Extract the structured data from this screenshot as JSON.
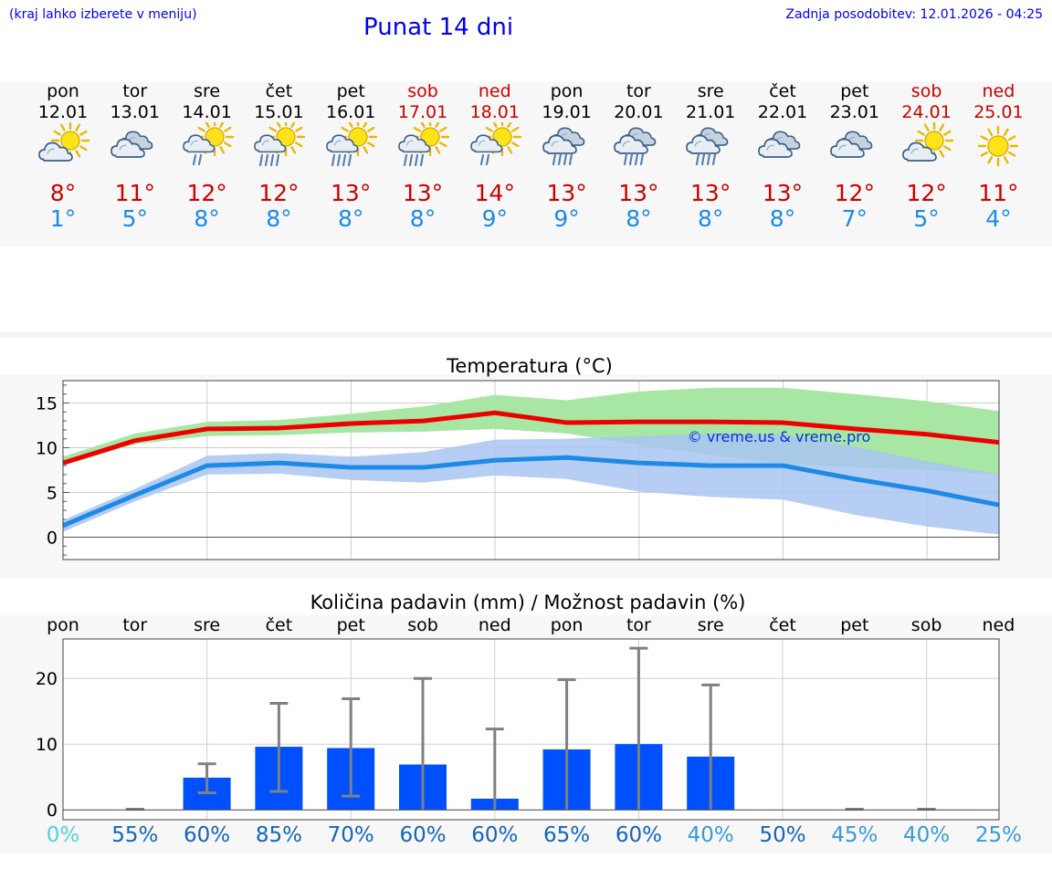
{
  "header": {
    "left_note": "(kraj lahko izberete v meniju)",
    "title": "Punat 14 dni",
    "updated": "Zadnja posodobitev: 12.01.2026 - 04:25"
  },
  "days": [
    {
      "name": "pon",
      "date": "12.01",
      "weekend": false,
      "icon": "sun-cloud",
      "tmax": "8°",
      "tmin": "1°",
      "pct": "0%",
      "pct_color": "#4fd1e0"
    },
    {
      "name": "tor",
      "date": "13.01",
      "weekend": false,
      "icon": "clouds",
      "tmax": "11°",
      "tmin": "5°",
      "pct": "55%",
      "pct_color": "#1565b8"
    },
    {
      "name": "sre",
      "date": "14.01",
      "weekend": false,
      "icon": "sun-rain",
      "tmax": "12°",
      "tmin": "8°",
      "pct": "60%",
      "pct_color": "#1565b8"
    },
    {
      "name": "čet",
      "date": "15.01",
      "weekend": false,
      "icon": "sun-heavy-rain",
      "tmax": "12°",
      "tmin": "8°",
      "pct": "85%",
      "pct_color": "#1565b8"
    },
    {
      "name": "pet",
      "date": "16.01",
      "weekend": false,
      "icon": "sun-heavy-rain",
      "tmax": "13°",
      "tmin": "8°",
      "pct": "70%",
      "pct_color": "#1565b8"
    },
    {
      "name": "sob",
      "date": "17.01",
      "weekend": true,
      "icon": "sun-heavy-rain",
      "tmax": "13°",
      "tmin": "8°",
      "pct": "60%",
      "pct_color": "#1565b8"
    },
    {
      "name": "ned",
      "date": "18.01",
      "weekend": true,
      "icon": "sun-rain",
      "tmax": "14°",
      "tmin": "9°",
      "pct": "60%",
      "pct_color": "#1565b8"
    },
    {
      "name": "pon",
      "date": "19.01",
      "weekend": false,
      "icon": "clouds-rain",
      "tmax": "13°",
      "tmin": "9°",
      "pct": "65%",
      "pct_color": "#1565b8"
    },
    {
      "name": "tor",
      "date": "20.01",
      "weekend": false,
      "icon": "clouds-rain",
      "tmax": "13°",
      "tmin": "8°",
      "pct": "60%",
      "pct_color": "#1565b8"
    },
    {
      "name": "sre",
      "date": "21.01",
      "weekend": false,
      "icon": "clouds-rain",
      "tmax": "13°",
      "tmin": "8°",
      "pct": "40%",
      "pct_color": "#3a9ad6"
    },
    {
      "name": "čet",
      "date": "22.01",
      "weekend": false,
      "icon": "clouds",
      "tmax": "13°",
      "tmin": "8°",
      "pct": "50%",
      "pct_color": "#1565b8"
    },
    {
      "name": "pet",
      "date": "23.01",
      "weekend": false,
      "icon": "clouds",
      "tmax": "12°",
      "tmin": "7°",
      "pct": "45%",
      "pct_color": "#3a9ad6"
    },
    {
      "name": "sob",
      "date": "24.01",
      "weekend": true,
      "icon": "sun-cloud",
      "tmax": "12°",
      "tmin": "5°",
      "pct": "40%",
      "pct_color": "#3a9ad6"
    },
    {
      "name": "ned",
      "date": "25.01",
      "weekend": true,
      "icon": "sun",
      "tmax": "11°",
      "tmin": "4°",
      "pct": "25%",
      "pct_color": "#3a9ad6"
    }
  ],
  "colors": {
    "max": "#ee0000",
    "min": "#1e8ae6",
    "band_max": "#a8e6a3",
    "band_min": "#a9c4f2",
    "bar": "#0050ff",
    "whisker": "#808080"
  },
  "chart_data": [
    {
      "type": "line",
      "title": "Temperatura (°C)",
      "watermark": "© vreme.us & vreme.pro",
      "ylim": [
        -2.5,
        17.5
      ],
      "yticks": [
        0,
        5,
        10,
        15
      ],
      "x": [
        0,
        1,
        2,
        3,
        4,
        5,
        6,
        7,
        8,
        9,
        10,
        11,
        12,
        13
      ],
      "series": [
        {
          "name": "max",
          "values": [
            8.3,
            10.8,
            12.1,
            12.2,
            12.7,
            13.0,
            13.9,
            12.8,
            12.9,
            12.9,
            12.8,
            12.1,
            11.5,
            10.6
          ],
          "band_low": [
            8.0,
            10.4,
            11.3,
            11.4,
            11.7,
            11.8,
            12.1,
            11.6,
            10.3,
            9.2,
            8.2,
            7.8,
            7.5,
            7.0
          ],
          "band_high": [
            9.0,
            11.6,
            12.9,
            13.1,
            13.8,
            14.6,
            15.9,
            15.3,
            16.3,
            16.7,
            16.7,
            16.0,
            15.2,
            14.1
          ]
        },
        {
          "name": "min",
          "values": [
            1.3,
            4.7,
            8.0,
            8.3,
            7.8,
            7.8,
            8.6,
            8.9,
            8.3,
            8.0,
            8.0,
            6.5,
            5.2,
            3.6
          ],
          "band_low": [
            0.6,
            4.0,
            7.0,
            7.1,
            6.4,
            6.1,
            6.9,
            6.5,
            5.1,
            4.5,
            4.2,
            2.5,
            1.2,
            0.3
          ],
          "band_high": [
            1.9,
            5.4,
            9.1,
            9.4,
            9.0,
            9.5,
            10.9,
            11.0,
            11.3,
            11.6,
            11.5,
            10.1,
            8.5,
            7.0
          ]
        }
      ]
    },
    {
      "type": "bar",
      "title": "Količina padavin (mm) / Možnost padavin (%)",
      "ylim": [
        -1.5,
        26
      ],
      "yticks": [
        0,
        10,
        20
      ],
      "categories": [
        "pon",
        "tor",
        "sre",
        "čet",
        "pet",
        "sob",
        "ned",
        "pon",
        "tor",
        "sre",
        "čet",
        "pet",
        "sob",
        "ned"
      ],
      "values": [
        0,
        0,
        4.9,
        9.6,
        9.4,
        6.9,
        1.7,
        9.2,
        10.0,
        8.1,
        0,
        0,
        0,
        0
      ],
      "err_low": [
        0,
        0,
        2.6,
        2.8,
        2.1,
        0,
        0,
        0,
        0,
        0,
        0,
        0,
        0,
        0
      ],
      "err_high": [
        0,
        0.1,
        7.0,
        16.2,
        16.9,
        20.0,
        12.3,
        19.8,
        24.6,
        19.0,
        0,
        0.1,
        0.1,
        0
      ]
    }
  ]
}
